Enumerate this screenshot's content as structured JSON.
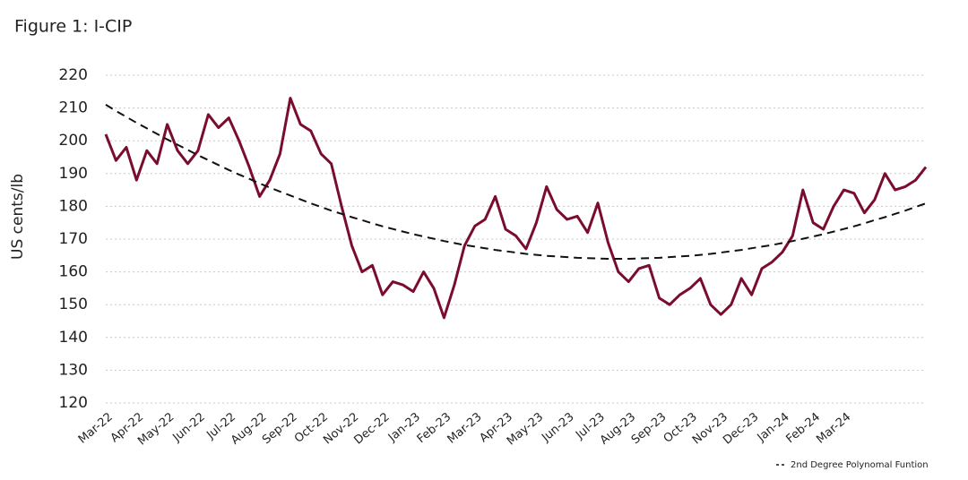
{
  "chart_data": {
    "type": "line",
    "title": "Figure 1: I-CIP",
    "y_label": "US cents/lb",
    "categories": [
      "Mar-22",
      null,
      null,
      "Apr-22",
      null,
      null,
      "May-22",
      null,
      null,
      "Jun-22",
      null,
      null,
      "Jul-22",
      null,
      null,
      "Aug-22",
      null,
      null,
      "Sep-22",
      null,
      null,
      "Oct-22",
      null,
      null,
      "Nov-22",
      null,
      null,
      "Dec-22",
      null,
      null,
      "Jan-23",
      null,
      null,
      "Feb-23",
      null,
      null,
      "Mar-23",
      null,
      null,
      "Apr-23",
      null,
      null,
      "May-23",
      null,
      null,
      "Jun-23",
      null,
      null,
      "Jul-23",
      null,
      null,
      "Aug-23",
      null,
      null,
      "Sep-23",
      null,
      null,
      "Oct-23",
      null,
      null,
      "Nov-23",
      null,
      null,
      "Dec-23",
      null,
      null,
      "Jan-24",
      null,
      null,
      "Feb-24",
      null,
      null,
      "Mar-24",
      null,
      null,
      null,
      null,
      null,
      null,
      null,
      null
    ],
    "series": [
      {
        "color": "#7a0c2e",
        "dash": false,
        "values": [
          202,
          194,
          198,
          188,
          197,
          193,
          205,
          197,
          193,
          197,
          208,
          204,
          207,
          200,
          192,
          183,
          188,
          196,
          213,
          205,
          203,
          196,
          193,
          180,
          168,
          160,
          162,
          153,
          157,
          156,
          154,
          160,
          155,
          146,
          156,
          168,
          174,
          176,
          183,
          173,
          171,
          167,
          175,
          186,
          179,
          176,
          177,
          172,
          181,
          169,
          160,
          157,
          161,
          162,
          152,
          150,
          153,
          155,
          158,
          150,
          147,
          150,
          158,
          153,
          161,
          163,
          166,
          171,
          185,
          175,
          173,
          180,
          185,
          184,
          178,
          182,
          190,
          185,
          186,
          188,
          192
        ]
      },
      {
        "name": "2nd Degree Polynomal Funtion",
        "color": "#111111",
        "dash": true,
        "values": [
          211.0,
          209.1,
          207.3,
          205.5,
          203.8,
          202.1,
          200.4,
          198.8,
          197.2,
          195.6,
          194.1,
          192.6,
          191.1,
          189.7,
          188.4,
          187.0,
          185.7,
          184.5,
          183.3,
          182.1,
          180.9,
          179.8,
          178.7,
          177.7,
          176.7,
          175.8,
          174.8,
          173.9,
          173.1,
          172.3,
          171.5,
          170.8,
          170.1,
          169.4,
          168.8,
          168.2,
          167.7,
          167.2,
          166.7,
          166.3,
          165.9,
          165.5,
          165.2,
          164.9,
          164.7,
          164.5,
          164.3,
          164.2,
          164.1,
          164.0,
          164.0,
          164.0,
          164.1,
          164.2,
          164.3,
          164.5,
          164.7,
          164.9,
          165.2,
          165.5,
          165.9,
          166.3,
          166.7,
          167.2,
          167.7,
          168.2,
          168.8,
          169.4,
          170.1,
          170.8,
          171.5,
          172.3,
          173.1,
          173.9,
          174.8,
          175.8,
          176.7,
          177.7,
          178.7,
          179.8,
          180.9
        ]
      }
    ],
    "ylim": [
      120,
      220
    ],
    "yticks": [
      120,
      130,
      140,
      150,
      160,
      170,
      180,
      190,
      200,
      210,
      220
    ],
    "grid": true,
    "legend": "bottom-right"
  }
}
